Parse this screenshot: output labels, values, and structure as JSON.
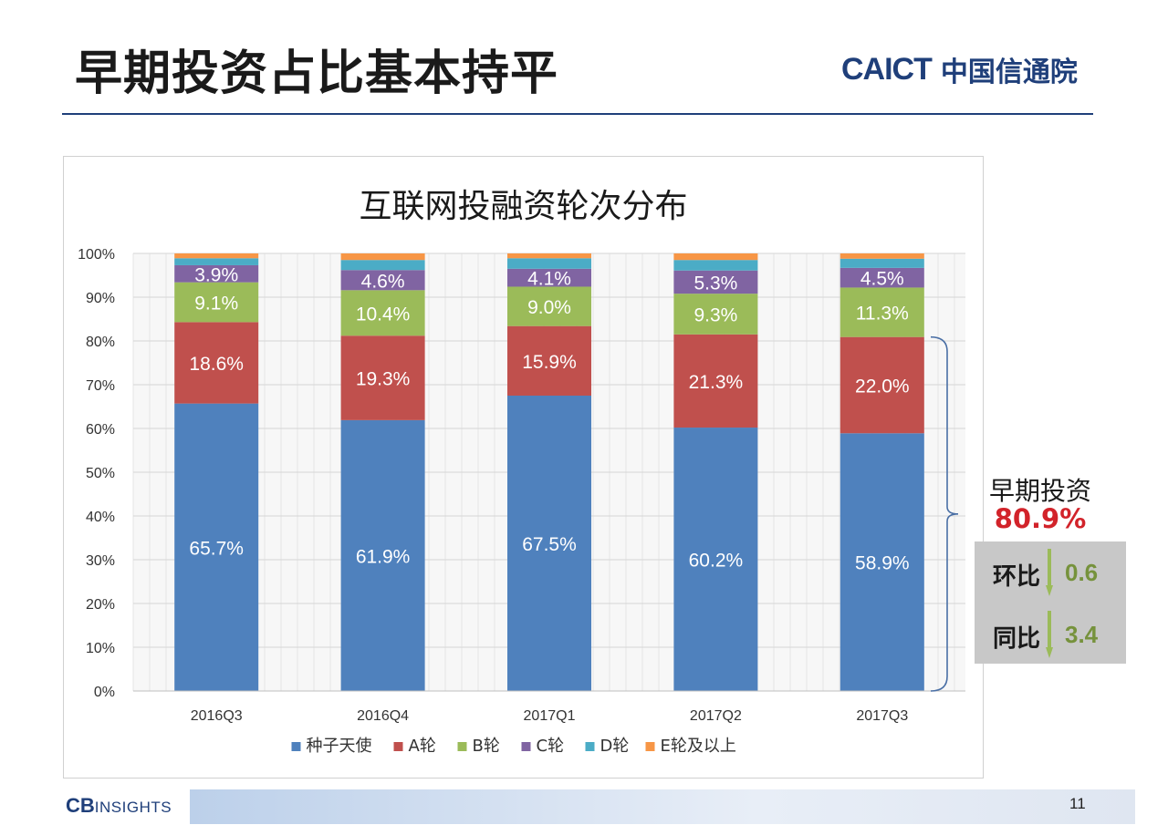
{
  "slide": {
    "title": "早期投资占比基本持平",
    "logo_en": "CAICT",
    "logo_cn": "中国信通院",
    "page_number": "11",
    "footer_logo_cb": "CB",
    "footer_logo_insights": "INSIGHTS"
  },
  "colors": {
    "seed": "#4f81bd",
    "a": "#c0504d",
    "b": "#9bbb59",
    "c": "#8064a2",
    "d": "#4bacc6",
    "e": "#f79646"
  },
  "chart_data": {
    "type": "bar",
    "stacked": true,
    "title": "互联网投融资轮次分布",
    "categories": [
      "2016Q3",
      "2016Q4",
      "2017Q1",
      "2017Q2",
      "2017Q3"
    ],
    "ylim": [
      0,
      100
    ],
    "yticks": [
      "0%",
      "10%",
      "20%",
      "30%",
      "40%",
      "50%",
      "60%",
      "70%",
      "80%",
      "90%",
      "100%"
    ],
    "grid": true,
    "legend_position": "bottom",
    "series": [
      {
        "name": "种子天使",
        "values": [
          65.7,
          61.9,
          67.5,
          60.2,
          58.9
        ],
        "labels": [
          "65.7%",
          "61.9%",
          "67.5%",
          "60.2%",
          "58.9%"
        ]
      },
      {
        "name": "A轮",
        "values": [
          18.6,
          19.3,
          15.9,
          21.3,
          22.0
        ],
        "labels": [
          "18.6%",
          "19.3%",
          "15.9%",
          "21.3%",
          "22.0%"
        ]
      },
      {
        "name": "B轮",
        "values": [
          9.1,
          10.4,
          9.0,
          9.3,
          11.3
        ],
        "labels": [
          "9.1%",
          "10.4%",
          "9.0%",
          "9.3%",
          "11.3%"
        ]
      },
      {
        "name": "C轮",
        "values": [
          3.9,
          4.6,
          4.1,
          5.3,
          4.5
        ],
        "labels": [
          "3.9%",
          "4.6%",
          "4.1%",
          "5.3%",
          "4.5%"
        ]
      },
      {
        "name": "D轮",
        "values": [
          1.6,
          2.3,
          2.4,
          2.4,
          2.1
        ],
        "labels": [
          "",
          "",
          "",
          "",
          ""
        ]
      },
      {
        "name": "E轮及以上",
        "values": [
          1.1,
          1.5,
          1.1,
          1.5,
          1.2
        ],
        "labels": [
          "",
          "",
          "",
          "",
          ""
        ]
      }
    ]
  },
  "annotation": {
    "label": "早期投资",
    "value": "80.9%",
    "qoq_label": "环比",
    "qoq_value": "0.6",
    "yoy_label": "同比",
    "yoy_value": "3.4"
  }
}
